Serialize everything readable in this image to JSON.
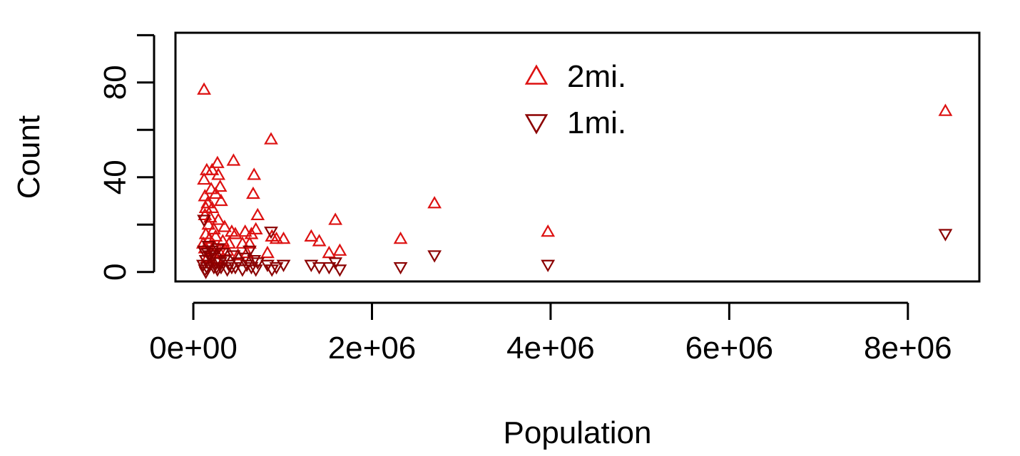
{
  "chart_data": {
    "type": "scatter",
    "title": "",
    "xlabel": "Population",
    "ylabel": "Count",
    "xlim": [
      -200000,
      8800000
    ],
    "ylim": [
      -4,
      101
    ],
    "xticks": [
      0,
      2000000,
      4000000,
      6000000,
      8000000
    ],
    "xtick_labels": [
      "0e+00",
      "2e+06",
      "4e+06",
      "6e+06",
      "8e+06"
    ],
    "yticks": [
      0,
      20,
      40,
      60,
      80,
      100
    ],
    "ytick_labels": [
      "0",
      "",
      "40",
      "",
      "80",
      ""
    ],
    "legend": {
      "position": "top-center",
      "entries": [
        {
          "label": "2mi.",
          "marker": "triangle-up",
          "color": "#dd1111"
        },
        {
          "label": "1mi.",
          "marker": "triangle-down",
          "color": "#8b0000"
        }
      ]
    },
    "series": [
      {
        "name": "2mi.",
        "marker": "triangle-up",
        "color": "#dd1111",
        "points": [
          [
            120000,
            77
          ],
          [
            8420000,
            68
          ],
          [
            870000,
            56
          ],
          [
            450000,
            47
          ],
          [
            270000,
            46
          ],
          [
            150000,
            43
          ],
          [
            210000,
            43
          ],
          [
            280000,
            41
          ],
          [
            680000,
            41
          ],
          [
            120000,
            39
          ],
          [
            300000,
            36
          ],
          [
            200000,
            35
          ],
          [
            670000,
            33
          ],
          [
            130000,
            32
          ],
          [
            250000,
            33
          ],
          [
            2700000,
            29
          ],
          [
            310000,
            30
          ],
          [
            160000,
            29
          ],
          [
            140000,
            27
          ],
          [
            210000,
            27
          ],
          [
            720000,
            24
          ],
          [
            1590000,
            22
          ],
          [
            130000,
            24
          ],
          [
            190000,
            23
          ],
          [
            280000,
            22
          ],
          [
            170000,
            20
          ],
          [
            350000,
            19
          ],
          [
            230000,
            18
          ],
          [
            430000,
            17
          ],
          [
            580000,
            17
          ],
          [
            3970000,
            17
          ],
          [
            140000,
            16
          ],
          [
            250000,
            15
          ],
          [
            470000,
            16
          ],
          [
            650000,
            16
          ],
          [
            700000,
            18
          ],
          [
            1320000,
            15
          ],
          [
            2320000,
            14
          ],
          [
            880000,
            15
          ],
          [
            930000,
            14
          ],
          [
            1010000,
            14
          ],
          [
            1410000,
            13
          ],
          [
            180000,
            14
          ],
          [
            330000,
            13
          ],
          [
            400000,
            12
          ],
          [
            550000,
            12
          ],
          [
            630000,
            12
          ],
          [
            1640000,
            9
          ],
          [
            1520000,
            8
          ],
          [
            830000,
            8
          ],
          [
            130000,
            10
          ],
          [
            200000,
            9
          ],
          [
            300000,
            8
          ],
          [
            380000,
            9
          ],
          [
            500000,
            7
          ],
          [
            600000,
            8
          ],
          [
            160000,
            6
          ],
          [
            260000,
            5
          ],
          [
            110000,
            12
          ],
          [
            230000,
            11
          ]
        ]
      },
      {
        "name": "1mi.",
        "marker": "triangle-down",
        "color": "#8b0000",
        "points": [
          [
            8420000,
            16
          ],
          [
            120000,
            22
          ],
          [
            870000,
            17
          ],
          [
            2700000,
            7
          ],
          [
            3970000,
            3
          ],
          [
            2320000,
            2
          ],
          [
            1320000,
            3
          ],
          [
            1410000,
            2
          ],
          [
            1520000,
            2
          ],
          [
            1640000,
            1
          ],
          [
            1590000,
            4
          ],
          [
            1010000,
            3
          ],
          [
            930000,
            2
          ],
          [
            880000,
            1
          ],
          [
            830000,
            3
          ],
          [
            720000,
            4
          ],
          [
            680000,
            5
          ],
          [
            650000,
            2
          ],
          [
            600000,
            3
          ],
          [
            550000,
            1
          ],
          [
            500000,
            4
          ],
          [
            450000,
            7
          ],
          [
            430000,
            2
          ],
          [
            400000,
            3
          ],
          [
            350000,
            5
          ],
          [
            310000,
            2
          ],
          [
            280000,
            10
          ],
          [
            250000,
            4
          ],
          [
            230000,
            2
          ],
          [
            200000,
            6
          ],
          [
            180000,
            3
          ],
          [
            160000,
            8
          ],
          [
            150000,
            2
          ],
          [
            140000,
            5
          ],
          [
            130000,
            1
          ],
          [
            120000,
            9
          ],
          [
            110000,
            3
          ],
          [
            270000,
            1
          ],
          [
            330000,
            8
          ],
          [
            470000,
            2
          ],
          [
            580000,
            6
          ],
          [
            210000,
            9
          ],
          [
            300000,
            4
          ],
          [
            380000,
            1
          ],
          [
            630000,
            9
          ],
          [
            700000,
            1
          ],
          [
            190000,
            7
          ],
          [
            260000,
            2
          ],
          [
            170000,
            11
          ],
          [
            140000,
            0
          ]
        ]
      }
    ]
  }
}
